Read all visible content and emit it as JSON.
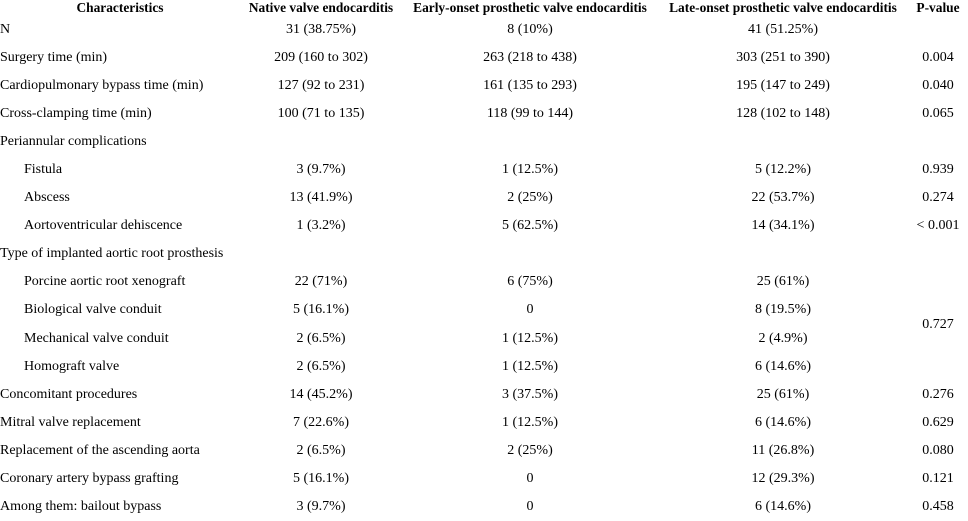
{
  "page": {
    "background": "#ffffff",
    "text_color": "#000000"
  },
  "table": {
    "columns": [
      {
        "label": "Characteristics"
      },
      {
        "label": "Native valve endocarditis"
      },
      {
        "label": "Early-onset prosthetic valve endocarditis"
      },
      {
        "label": "Late-onset prosthetic valve endocarditis"
      },
      {
        "label": "P-value"
      }
    ],
    "rows": [
      {
        "label": "N",
        "indent": 0,
        "values": [
          "31 (38.75%)",
          "8 (10%)",
          "41 (51.25%)"
        ],
        "p": ""
      },
      {
        "label": "Surgery time (min)",
        "indent": 0,
        "values": [
          "209 (160 to 302)",
          "263 (218 to 438)",
          "303 (251 to 390)"
        ],
        "p": "0.004"
      },
      {
        "label": "Cardiopulmonary bypass time (min)",
        "indent": 0,
        "values": [
          "127 (92 to 231)",
          "161 (135 to 293)",
          "195 (147 to 249)"
        ],
        "p": "0.040"
      },
      {
        "label": "Cross-clamping time (min)",
        "indent": 0,
        "values": [
          "100 (71 to 135)",
          "118 (99 to 144)",
          "128 (102 to 148)"
        ],
        "p": "0.065"
      },
      {
        "label": "Periannular complications",
        "indent": 0,
        "values": [
          "",
          "",
          ""
        ],
        "p": ""
      },
      {
        "label": "Fistula",
        "indent": 1,
        "values": [
          "3 (9.7%)",
          "1 (12.5%)",
          "5 (12.2%)"
        ],
        "p": "0.939"
      },
      {
        "label": "Abscess",
        "indent": 1,
        "values": [
          "13 (41.9%)",
          "2 (25%)",
          "22 (53.7%)"
        ],
        "p": "0.274"
      },
      {
        "label": "Aortoventricular dehiscence",
        "indent": 1,
        "values": [
          "1 (3.2%)",
          "5 (62.5%)",
          "14 (34.1%)"
        ],
        "p": "< 0.001"
      },
      {
        "label": "Type of implanted aortic root prosthesis",
        "indent": 0,
        "values": [
          "",
          "",
          ""
        ],
        "p": ""
      },
      {
        "label": "Porcine aortic root xenograft",
        "indent": 1,
        "values": [
          "22 (71%)",
          "6 (75%)",
          "25 (61%)"
        ],
        "p": "0.727",
        "p_rowspan": 4
      },
      {
        "label": "Biological valve conduit",
        "indent": 1,
        "values": [
          "5 (16.1%)",
          "0",
          "8 (19.5%)"
        ],
        "p_merged": true
      },
      {
        "label": "Mechanical valve conduit",
        "indent": 1,
        "values": [
          "2 (6.5%)",
          "1 (12.5%)",
          "2 (4.9%)"
        ],
        "p_merged": true
      },
      {
        "label": "Homograft valve",
        "indent": 1,
        "values": [
          "2 (6.5%)",
          "1 (12.5%)",
          "6 (14.6%)"
        ],
        "p_merged": true
      },
      {
        "label": "Concomitant procedures",
        "indent": 0,
        "values": [
          "14 (45.2%)",
          "3 (37.5%)",
          "25 (61%)"
        ],
        "p": "0.276"
      },
      {
        "label": "Mitral valve replacement",
        "indent": 0,
        "values": [
          "7 (22.6%)",
          "1 (12.5%)",
          "6 (14.6%)"
        ],
        "p": "0.629"
      },
      {
        "label": "Replacement of the ascending aorta",
        "indent": 0,
        "values": [
          "2 (6.5%)",
          "2 (25%)",
          "11 (26.8%)"
        ],
        "p": "0.080"
      },
      {
        "label": "Coronary artery bypass grafting",
        "indent": 0,
        "values": [
          "5 (16.1%)",
          "0",
          "12 (29.3%)"
        ],
        "p": "0.121"
      },
      {
        "label": "Among them: bailout bypass",
        "indent": 0,
        "values": [
          "3 (9.7%)",
          "0",
          "6 (14.6%)"
        ],
        "p": "0.458"
      }
    ]
  }
}
